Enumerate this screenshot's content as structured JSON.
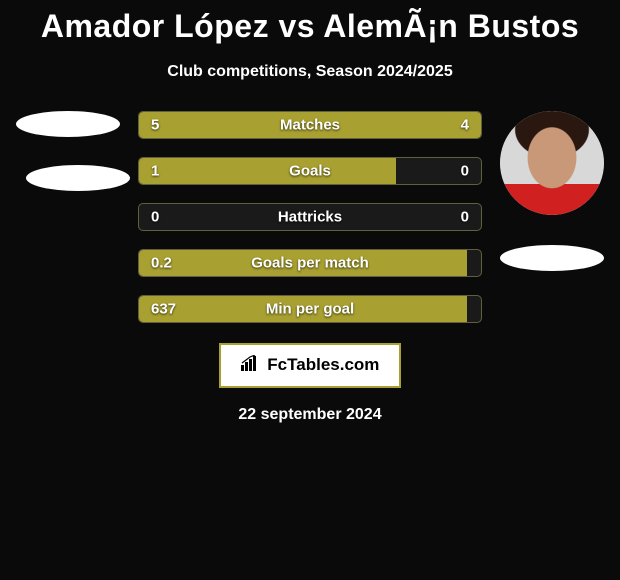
{
  "title": "Amador López vs AlemÃ¡n Bustos",
  "subtitle": "Club competitions, Season 2024/2025",
  "bar_color": "#a8a030",
  "bar_track_color": "#1a1a1a",
  "background_color": "#0a0a0a",
  "text_color": "#ffffff",
  "stats": [
    {
      "label": "Matches",
      "left_val": "5",
      "right_val": "4",
      "left_pct": 55.5,
      "right_pct": 44.5
    },
    {
      "label": "Goals",
      "left_val": "1",
      "right_val": "0",
      "left_pct": 75,
      "right_pct": 0
    },
    {
      "label": "Hattricks",
      "left_val": "0",
      "right_val": "0",
      "left_pct": 0,
      "right_pct": 0
    },
    {
      "label": "Goals per match",
      "left_val": "0.2",
      "right_val": "",
      "left_pct": 96,
      "right_pct": 0
    },
    {
      "label": "Min per goal",
      "left_val": "637",
      "right_val": "",
      "left_pct": 96,
      "right_pct": 0
    }
  ],
  "logo_text": "FcTables.com",
  "date": "22 september 2024"
}
